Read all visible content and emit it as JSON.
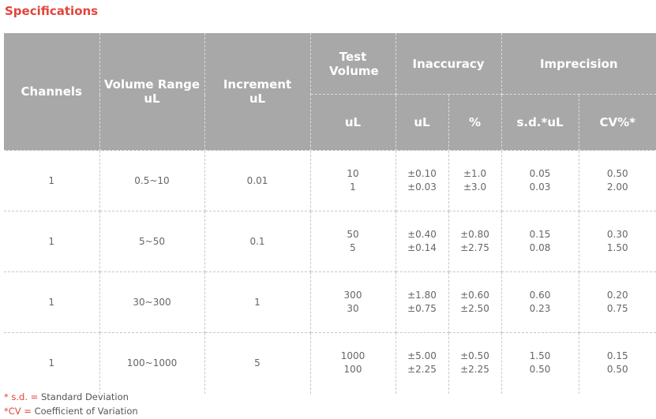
{
  "title": "Specifications",
  "headers": {
    "channels": "Channels",
    "volume_range": "Volume Range",
    "volume_range_unit": "uL",
    "increment": "Increment",
    "increment_unit": "uL",
    "test_volume": "Test Volume",
    "inaccuracy": "Inaccuracy",
    "imprecision": "Imprecision",
    "test_volume_unit": "uL",
    "inacc_ul": "uL",
    "inacc_pct": "%",
    "sd_ul": "s.d.*uL",
    "cv_pct": "CV%*"
  },
  "rows": [
    {
      "channels": "1",
      "range": "0.5~10",
      "increment": "0.01",
      "test_volume": [
        "10",
        "1"
      ],
      "inacc_ul": [
        "±0.10",
        "±0.03"
      ],
      "inacc_pct": [
        "±1.0",
        "±3.0"
      ],
      "sd": [
        "0.05",
        "0.03"
      ],
      "cv": [
        "0.50",
        "2.00"
      ]
    },
    {
      "channels": "1",
      "range": "5~50",
      "increment": "0.1",
      "test_volume": [
        "50",
        "5"
      ],
      "inacc_ul": [
        "±0.40",
        "±0.14"
      ],
      "inacc_pct": [
        "±0.80",
        "±2.75"
      ],
      "sd": [
        "0.15",
        "0.08"
      ],
      "cv": [
        "0.30",
        "1.50"
      ]
    },
    {
      "channels": "1",
      "range": "30~300",
      "increment": "1",
      "test_volume": [
        "300",
        "30"
      ],
      "inacc_ul": [
        "±1.80",
        "±0.75"
      ],
      "inacc_pct": [
        "±0.60",
        "±2.50"
      ],
      "sd": [
        "0.60",
        "0.23"
      ],
      "cv": [
        "0.20",
        "0.75"
      ]
    },
    {
      "channels": "1",
      "range": "100~1000",
      "increment": "5",
      "test_volume": [
        "1000",
        "100"
      ],
      "inacc_ul": [
        "±5.00",
        "±2.25"
      ],
      "inacc_pct": [
        "±0.50",
        "±2.25"
      ],
      "sd": [
        "1.50",
        "0.50"
      ],
      "cv": [
        "0.15",
        "0.50"
      ]
    }
  ],
  "notes": {
    "sd_mark": "* s.d. =",
    "sd_text": "Standard Deviation",
    "cv_mark": "*CV =",
    "cv_text": "Coefficient of Variation"
  },
  "colors": {
    "accent": "#e2453c",
    "header_bg": "#a8a8a8",
    "header_text": "#ffffff",
    "cell_text": "#666666"
  }
}
